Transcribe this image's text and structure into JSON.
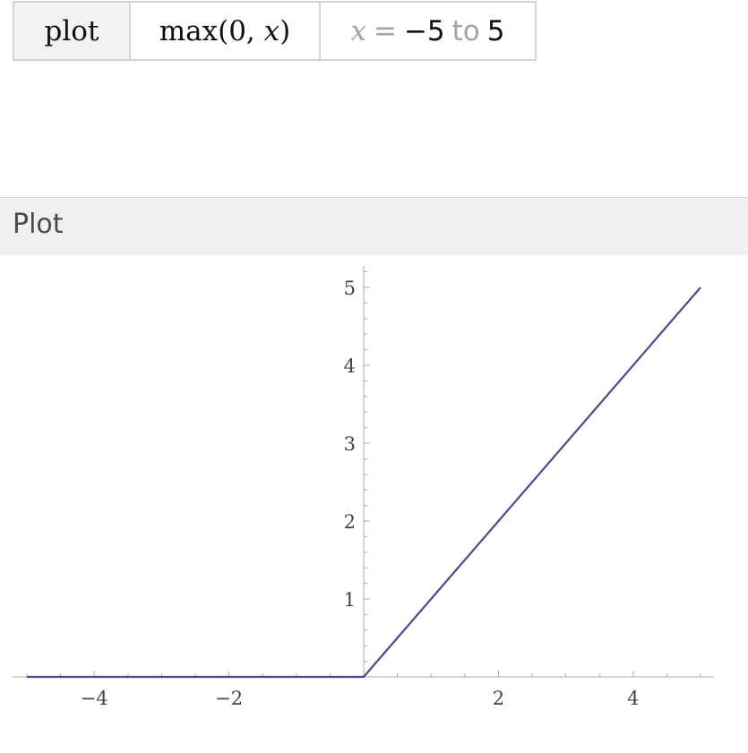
{
  "input": {
    "command": "plot",
    "func_prefix": "max(0, ",
    "func_var": "x",
    "func_suffix": ")",
    "range_var": "x",
    "range_eq": "=",
    "range_from": "−5",
    "range_to_word": "to",
    "range_to": "5"
  },
  "pod": {
    "title": "Plot"
  },
  "chart_data": {
    "type": "line",
    "xlim": [
      -5,
      5
    ],
    "ylim": [
      0,
      5
    ],
    "x_ticks": [
      -4,
      -2,
      2,
      4
    ],
    "x_tick_labels": [
      "−4",
      "−2",
      "2",
      "4"
    ],
    "y_ticks": [
      1,
      2,
      3,
      4,
      5
    ],
    "y_tick_labels": [
      "1",
      "2",
      "3",
      "4",
      "5"
    ],
    "grid": false,
    "line_color": "#4a4a8e",
    "series": [
      {
        "x": [
          -5,
          0,
          5
        ],
        "y": [
          0,
          0,
          5
        ]
      }
    ]
  }
}
